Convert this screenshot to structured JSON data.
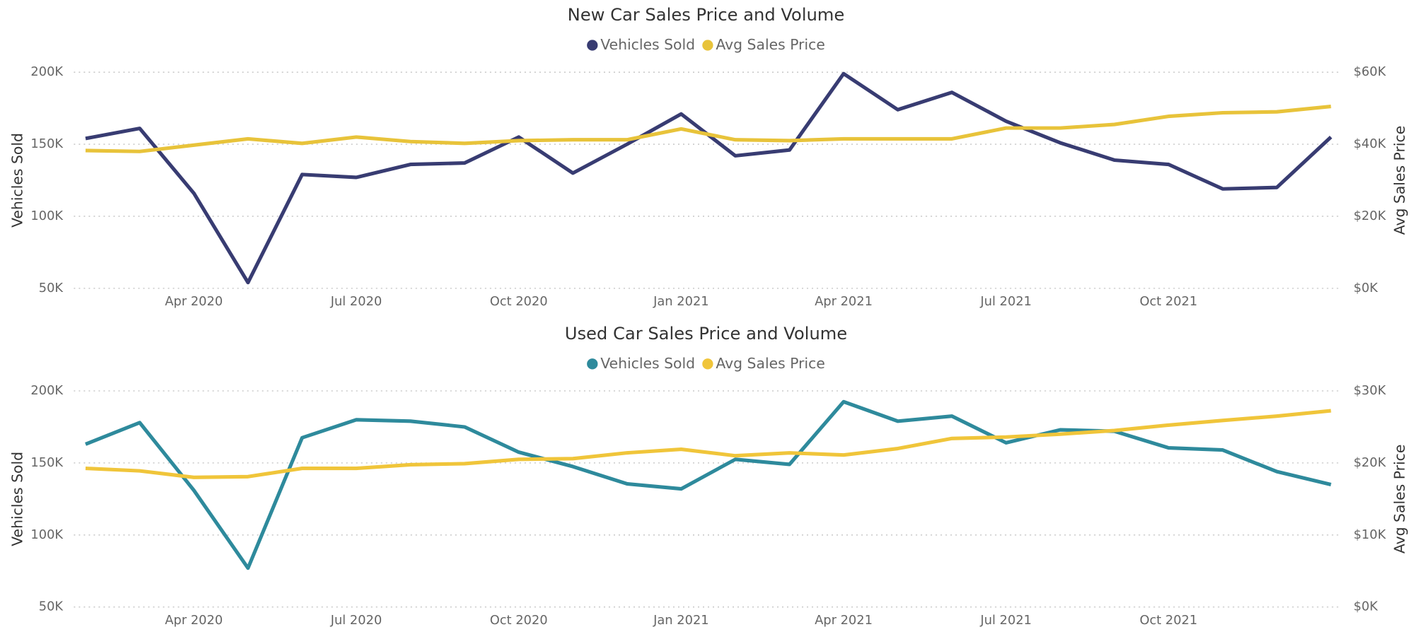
{
  "chart_data": [
    {
      "type": "line",
      "title": "New Car Sales Price and Volume",
      "ylabel": "Vehicles Sold",
      "y2label": "Avg Sales Price",
      "x": [
        "2020-02",
        "2020-03",
        "2020-04",
        "2020-05",
        "2020-06",
        "2020-07",
        "2020-08",
        "2020-09",
        "2020-10",
        "2020-11",
        "2020-12",
        "2021-01",
        "2021-02",
        "2021-03",
        "2021-04",
        "2021-05",
        "2021-06",
        "2021-07",
        "2021-08",
        "2021-09",
        "2021-10",
        "2021-11",
        "2021-12",
        "2022-01"
      ],
      "xticks": [
        {
          "value": "2020-04",
          "label": "Apr 2020"
        },
        {
          "value": "2020-07",
          "label": "Jul 2020"
        },
        {
          "value": "2020-10",
          "label": "Oct 2020"
        },
        {
          "value": "2021-01",
          "label": "Jan 2021"
        },
        {
          "value": "2021-04",
          "label": "Apr 2021"
        },
        {
          "value": "2021-07",
          "label": "Jul 2021"
        },
        {
          "value": "2021-10",
          "label": "Oct 2021"
        }
      ],
      "ylim": [
        50000,
        200000
      ],
      "yticks": [
        {
          "value": 50000,
          "label": "50K"
        },
        {
          "value": 100000,
          "label": "100K"
        },
        {
          "value": 150000,
          "label": "150K"
        },
        {
          "value": 200000,
          "label": "200K"
        }
      ],
      "y2lim": [
        0,
        60000
      ],
      "y2ticks": [
        {
          "value": 0,
          "label": "$0K"
        },
        {
          "value": 20000,
          "label": "$20K"
        },
        {
          "value": 40000,
          "label": "$40K"
        },
        {
          "value": 60000,
          "label": "$60K"
        }
      ],
      "grid": true,
      "legend": "top",
      "series": [
        {
          "name": "Vehicles Sold",
          "color": "#383c72",
          "axis": "y",
          "values": [
            154000,
            161000,
            116000,
            54000,
            129000,
            127000,
            136000,
            137000,
            155000,
            130000,
            150000,
            171000,
            142000,
            146000,
            199000,
            174000,
            186000,
            166000,
            151000,
            139000,
            136000,
            119000,
            120000,
            155000
          ]
        },
        {
          "name": "Avg Sales Price",
          "color": "#e8c33a",
          "axis": "y2",
          "values": [
            38250,
            38000,
            39750,
            41500,
            40250,
            42000,
            40750,
            40250,
            41000,
            41250,
            41250,
            44250,
            41250,
            41000,
            41500,
            41500,
            41500,
            44500,
            44500,
            45500,
            47750,
            48750,
            49000,
            50500
          ]
        }
      ]
    },
    {
      "type": "line",
      "title": "Used Car Sales Price and Volume",
      "ylabel": "Vehicles Sold",
      "y2label": "Avg Sales Price",
      "x": [
        "2020-02",
        "2020-03",
        "2020-04",
        "2020-05",
        "2020-06",
        "2020-07",
        "2020-08",
        "2020-09",
        "2020-10",
        "2020-11",
        "2020-12",
        "2021-01",
        "2021-02",
        "2021-03",
        "2021-04",
        "2021-05",
        "2021-06",
        "2021-07",
        "2021-08",
        "2021-09",
        "2021-10",
        "2021-11",
        "2021-12",
        "2022-01"
      ],
      "xticks": [
        {
          "value": "2020-04",
          "label": "Apr 2020"
        },
        {
          "value": "2020-07",
          "label": "Jul 2020"
        },
        {
          "value": "2020-10",
          "label": "Oct 2020"
        },
        {
          "value": "2021-01",
          "label": "Jan 2021"
        },
        {
          "value": "2021-04",
          "label": "Apr 2021"
        },
        {
          "value": "2021-07",
          "label": "Jul 2021"
        },
        {
          "value": "2021-10",
          "label": "Oct 2021"
        }
      ],
      "ylim": [
        50000,
        200000
      ],
      "yticks": [
        {
          "value": 50000,
          "label": "50K"
        },
        {
          "value": 100000,
          "label": "100K"
        },
        {
          "value": 150000,
          "label": "150K"
        },
        {
          "value": 200000,
          "label": "200K"
        }
      ],
      "y2lim": [
        0,
        30000
      ],
      "y2ticks": [
        {
          "value": 0,
          "label": "$0K"
        },
        {
          "value": 10000,
          "label": "$10K"
        },
        {
          "value": 20000,
          "label": "$20K"
        },
        {
          "value": 30000,
          "label": "$30K"
        }
      ],
      "grid": true,
      "legend": "top",
      "series": [
        {
          "name": "Vehicles Sold",
          "color": "#2e8a9c",
          "axis": "y",
          "values": [
            163000,
            178000,
            131000,
            77000,
            167500,
            180000,
            179000,
            175000,
            157500,
            147500,
            135500,
            132000,
            152500,
            149000,
            192500,
            179000,
            182500,
            164000,
            173000,
            172000,
            160500,
            159000,
            144000,
            135000
          ]
        },
        {
          "name": "Avg Sales Price",
          "color": "#f0c53a",
          "axis": "y2",
          "values": [
            19250,
            18900,
            18000,
            18100,
            19250,
            19250,
            19750,
            19900,
            20500,
            20600,
            21400,
            21900,
            21000,
            21400,
            21100,
            22000,
            23400,
            23600,
            24000,
            24500,
            25250,
            25900,
            26500,
            27250
          ]
        }
      ]
    }
  ]
}
